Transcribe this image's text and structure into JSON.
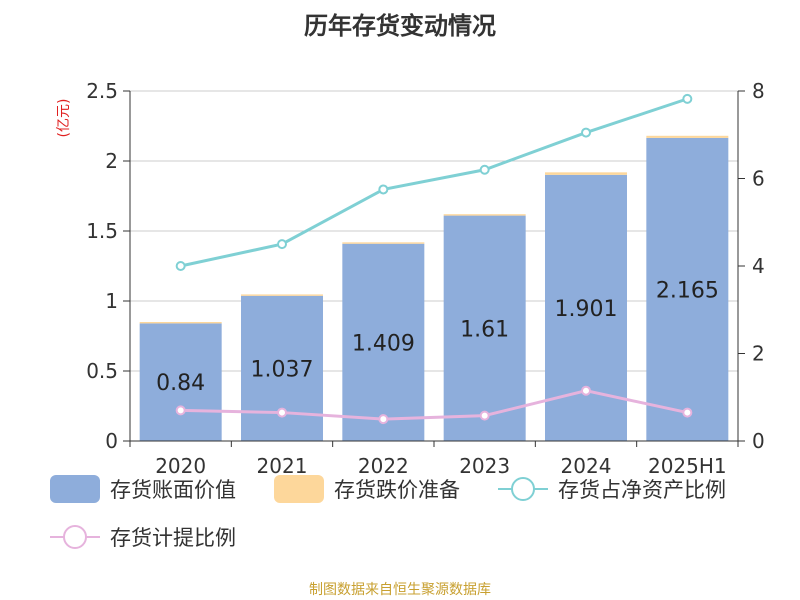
{
  "chart_data": {
    "type": "bar",
    "title": "历年存货变动情况",
    "unit_label": "(亿元)",
    "categories": [
      "2020",
      "2021",
      "2022",
      "2023",
      "2024",
      "2025H1"
    ],
    "series": [
      {
        "name": "存货账面价值",
        "type": "bar",
        "axis": "left",
        "color": "#8eaddb",
        "values": [
          0.84,
          1.037,
          1.409,
          1.61,
          1.901,
          2.165
        ]
      },
      {
        "name": "存货跌价准备",
        "type": "bar",
        "axis": "left",
        "color": "#fdd79b",
        "values": [
          0.01,
          0.01,
          0.01,
          0.01,
          0.018,
          0.015
        ]
      },
      {
        "name": "存货占净资产比例",
        "type": "line",
        "axis": "right",
        "color": "#7fd0d4",
        "values": [
          4.0,
          4.5,
          5.75,
          6.2,
          7.05,
          7.82
        ]
      },
      {
        "name": "存货计提比例",
        "type": "line",
        "axis": "right",
        "color": "#e6b3dd",
        "values": [
          0.7,
          0.65,
          0.5,
          0.58,
          1.15,
          0.65
        ]
      }
    ],
    "data_labels": [
      "0.84",
      "1.037",
      "1.409",
      "1.61",
      "1.901",
      "2.165"
    ],
    "y_left": {
      "min": 0,
      "max": 2.5,
      "ticks": [
        "0",
        "0.5",
        "1",
        "1.5",
        "2",
        "2.5"
      ]
    },
    "y_right": {
      "min": 0,
      "max": 8,
      "ticks": [
        "0",
        "2",
        "4",
        "6",
        "8"
      ]
    },
    "grid": true,
    "legend_position": "bottom"
  },
  "source": "制图数据来自恒生聚源数据库"
}
